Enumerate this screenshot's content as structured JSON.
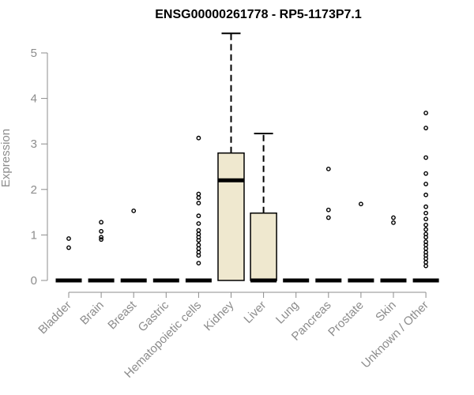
{
  "chart_data": {
    "type": "boxplot",
    "title": "ENSG00000261778 - RP5-1173P7.1",
    "xlabel": "",
    "ylabel": "Expression",
    "ylim": [
      0,
      5
    ],
    "yticks": [
      "0",
      "1",
      "2",
      "3",
      "4",
      "5"
    ],
    "colors": {
      "box_fill": "#efe8cf",
      "axis": "#8c8c8c",
      "ink": "#000000"
    },
    "categories": [
      {
        "label": "Bladder",
        "q1": 0,
        "median": 0,
        "q3": 0,
        "wlow": 0,
        "whigh": 0,
        "outliers": [
          0.72,
          0.92
        ]
      },
      {
        "label": "Brain",
        "q1": 0,
        "median": 0,
        "q3": 0,
        "wlow": 0,
        "whigh": 0,
        "outliers": [
          0.9,
          0.95,
          1.08,
          1.28
        ]
      },
      {
        "label": "Breast",
        "q1": 0,
        "median": 0,
        "q3": 0,
        "wlow": 0,
        "whigh": 0,
        "outliers": [
          1.53
        ]
      },
      {
        "label": "Gastric",
        "q1": 0,
        "median": 0,
        "q3": 0,
        "wlow": 0,
        "whigh": 0,
        "outliers": []
      },
      {
        "label": "Hematopoietic cells",
        "q1": 0,
        "median": 0,
        "q3": 0,
        "wlow": 0,
        "whigh": 0,
        "outliers": [
          0.38,
          0.55,
          0.62,
          0.7,
          0.78,
          0.88,
          0.95,
          1.02,
          1.1,
          1.25,
          1.42,
          1.7,
          1.82,
          1.9,
          3.13
        ]
      },
      {
        "label": "Kidney",
        "q1": 0,
        "median": 2.2,
        "q3": 2.8,
        "wlow": 0,
        "whigh": 5.43,
        "outliers": []
      },
      {
        "label": "Liver",
        "q1": 0,
        "median": 0,
        "q3": 1.48,
        "wlow": 0,
        "whigh": 3.23,
        "outliers": []
      },
      {
        "label": "Lung",
        "q1": 0,
        "median": 0,
        "q3": 0,
        "wlow": 0,
        "whigh": 0,
        "outliers": []
      },
      {
        "label": "Pancreas",
        "q1": 0,
        "median": 0,
        "q3": 0,
        "wlow": 0,
        "whigh": 0,
        "outliers": [
          1.38,
          1.55,
          2.45
        ]
      },
      {
        "label": "Prostate",
        "q1": 0,
        "median": 0,
        "q3": 0,
        "wlow": 0,
        "whigh": 0,
        "outliers": [
          1.68
        ]
      },
      {
        "label": "Skin",
        "q1": 0,
        "median": 0,
        "q3": 0,
        "wlow": 0,
        "whigh": 0,
        "outliers": [
          1.27,
          1.38
        ]
      },
      {
        "label": "Unknown / Other",
        "q1": 0,
        "median": 0,
        "q3": 0,
        "wlow": 0,
        "whigh": 0,
        "outliers": [
          0.32,
          0.4,
          0.48,
          0.55,
          0.62,
          0.7,
          0.78,
          0.85,
          0.95,
          1.02,
          1.12,
          1.22,
          1.35,
          1.48,
          1.62,
          1.88,
          2.12,
          2.35,
          2.7,
          3.35,
          3.68
        ]
      }
    ]
  }
}
